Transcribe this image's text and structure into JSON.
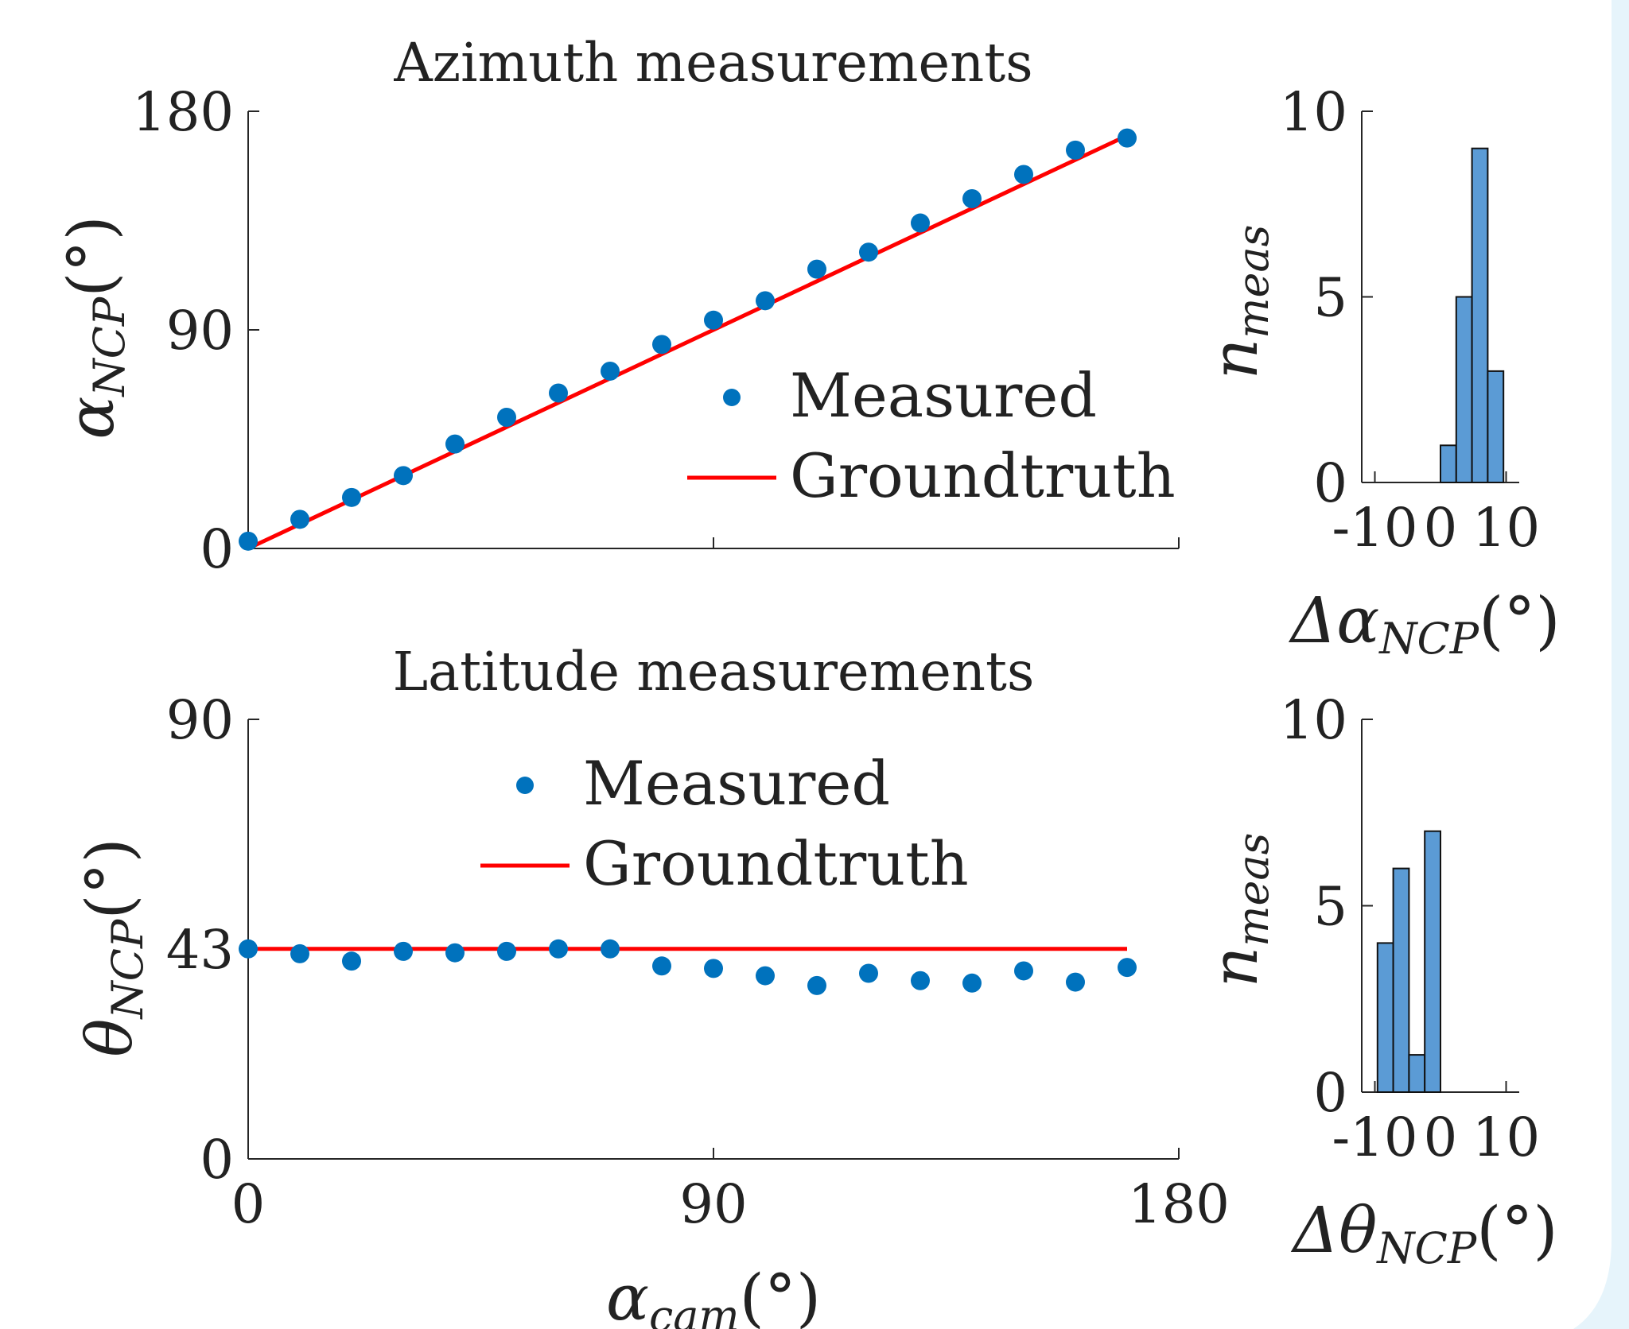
{
  "chart_data": [
    {
      "id": "azimuth",
      "type": "scatter",
      "title": "Azimuth measurements",
      "ylabel": {
        "main": "α",
        "sub": "NCP",
        "unit": "(°)"
      },
      "xlabel": "",
      "xlim": [
        0,
        180
      ],
      "ylim": [
        0,
        180
      ],
      "xticks": [
        0,
        90,
        180
      ],
      "xtick_labels": [
        "",
        "",
        ""
      ],
      "yticks": [
        0,
        90,
        180
      ],
      "ytick_labels": [
        "0",
        "90",
        "180"
      ],
      "grid": false,
      "legend": {
        "placement": "center-right",
        "measured_label": "Measured",
        "groundtruth_label": "Groundtruth"
      },
      "colors": {
        "measured": "#0072BD",
        "groundtruth": "#FF0000",
        "axis": "#262626"
      },
      "series": [
        {
          "name": "Measured",
          "kind": "scatter",
          "x": [
            0,
            10,
            20,
            30,
            40,
            50,
            60,
            70,
            80,
            90,
            100,
            110,
            120,
            130,
            140,
            150,
            160,
            170
          ],
          "y": [
            3,
            12,
            21,
            30,
            43,
            54,
            64,
            73,
            84,
            94,
            102,
            115,
            122,
            134,
            144,
            154,
            164,
            169
          ]
        },
        {
          "name": "Groundtruth",
          "kind": "line",
          "x": [
            0,
            170
          ],
          "y": [
            0,
            170
          ]
        }
      ]
    },
    {
      "id": "latitude",
      "type": "scatter",
      "title": "Latitude measurements",
      "ylabel": {
        "main": "θ",
        "sub": "NCP",
        "unit": "(°)"
      },
      "xlabel": {
        "main": "α",
        "sub": "cam",
        "unit": "(°)"
      },
      "xlim": [
        0,
        180
      ],
      "ylim": [
        0,
        90
      ],
      "xticks": [
        0,
        90,
        180
      ],
      "xtick_labels": [
        "0",
        "90",
        "180"
      ],
      "yticks": [
        0,
        43,
        90
      ],
      "ytick_labels": [
        "0",
        "43",
        "90"
      ],
      "grid": false,
      "legend": {
        "placement": "top-center",
        "measured_label": "Measured",
        "groundtruth_label": "Groundtruth"
      },
      "colors": {
        "measured": "#0072BD",
        "groundtruth": "#FF0000",
        "axis": "#262626"
      },
      "series": [
        {
          "name": "Measured",
          "kind": "scatter",
          "x": [
            0,
            10,
            20,
            30,
            40,
            50,
            60,
            70,
            80,
            90,
            100,
            110,
            120,
            130,
            140,
            150,
            160,
            170
          ],
          "y": [
            43,
            42,
            40.5,
            42.5,
            42.2,
            42.5,
            43,
            43,
            39.5,
            39,
            37.5,
            35.5,
            38,
            36.5,
            36,
            38.5,
            36.2,
            39.2
          ]
        },
        {
          "name": "Groundtruth",
          "kind": "line",
          "x": [
            0,
            170
          ],
          "y": [
            43,
            43
          ]
        }
      ]
    },
    {
      "id": "azimuth-error-histogram",
      "type": "bar",
      "title": "",
      "ylabel": {
        "main": "n",
        "sub": "meas",
        "unit": ""
      },
      "xlabel": {
        "main": "Δα",
        "sub": "NCP",
        "unit": "(°)"
      },
      "xlim": [
        -12,
        12
      ],
      "ylim": [
        0,
        10
      ],
      "xticks": [
        -10,
        0,
        10
      ],
      "xtick_labels": [
        "-10",
        "0",
        "10"
      ],
      "yticks": [
        0,
        5,
        10
      ],
      "ytick_labels": [
        "0",
        "5",
        "10"
      ],
      "grid": false,
      "colors": {
        "bar_fill": "#5B9BD5",
        "bar_edge": "#111111",
        "axis": "#262626"
      },
      "bins": [
        {
          "from": 0,
          "to": 2.4,
          "count": 1
        },
        {
          "from": 2.4,
          "to": 4.8,
          "count": 5
        },
        {
          "from": 4.8,
          "to": 7.2,
          "count": 9
        },
        {
          "from": 7.2,
          "to": 9.6,
          "count": 3
        }
      ]
    },
    {
      "id": "latitude-error-histogram",
      "type": "bar",
      "title": "",
      "ylabel": {
        "main": "n",
        "sub": "meas",
        "unit": ""
      },
      "xlabel": {
        "main": "Δθ",
        "sub": "NCP",
        "unit": "(°)"
      },
      "xlim": [
        -12,
        12
      ],
      "ylim": [
        0,
        10
      ],
      "xticks": [
        -10,
        0,
        10
      ],
      "xtick_labels": [
        "-10",
        "0",
        "10"
      ],
      "yticks": [
        0,
        5,
        10
      ],
      "ytick_labels": [
        "0",
        "5",
        "10"
      ],
      "grid": false,
      "colors": {
        "bar_fill": "#5B9BD5",
        "bar_edge": "#111111",
        "axis": "#262626"
      },
      "bins": [
        {
          "from": -9.6,
          "to": -7.2,
          "count": 4
        },
        {
          "from": -7.2,
          "to": -4.8,
          "count": 6
        },
        {
          "from": -4.8,
          "to": -2.4,
          "count": 1
        },
        {
          "from": -2.4,
          "to": 0,
          "count": 7
        }
      ]
    }
  ]
}
